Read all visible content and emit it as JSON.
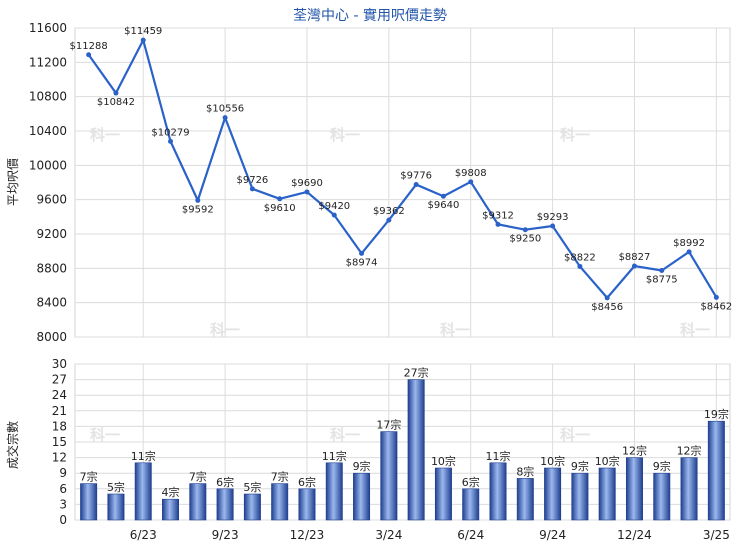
{
  "chart_data": [
    {
      "type": "line",
      "title": "荃灣中心 - 實用呎價走勢",
      "ylabel": "平均呎價",
      "ylim": [
        8000,
        11600
      ],
      "yticks": [
        8000,
        8400,
        8800,
        9200,
        9600,
        10000,
        10400,
        10800,
        11200,
        11600
      ],
      "grid": true,
      "line_color": "#2a62c9",
      "point_labels": [
        "$11288",
        "$10842",
        "$11459",
        "$10279",
        "$9592",
        "$10556",
        "$9726",
        "$9610",
        "$9690",
        "$9420",
        "$8974",
        "$9362",
        "$9776",
        "$9640",
        "$9808",
        "$9312",
        "$9250",
        "$9293",
        "$8822",
        "$8456",
        "$8827",
        "$8775",
        "$8992",
        "$8462"
      ],
      "values": [
        11288,
        10842,
        11459,
        10279,
        9592,
        10556,
        9726,
        9610,
        9690,
        9420,
        8974,
        9362,
        9776,
        9640,
        9808,
        9312,
        9250,
        9293,
        8822,
        8456,
        8827,
        8775,
        8992,
        8462
      ]
    },
    {
      "type": "bar",
      "ylabel": "成交宗數",
      "ylim": [
        0,
        30
      ],
      "yticks": [
        0,
        3,
        6,
        9,
        12,
        15,
        18,
        21,
        24,
        27,
        30
      ],
      "grid": true,
      "bar_color": "#3a66c8",
      "values": [
        7,
        5,
        11,
        4,
        7,
        6,
        5,
        7,
        6,
        11,
        9,
        17,
        27,
        10,
        6,
        11,
        8,
        10,
        9,
        10,
        12,
        9,
        12,
        19
      ],
      "bar_labels": [
        "7宗",
        "5宗",
        "11宗",
        "4宗",
        "7宗",
        "6宗",
        "5宗",
        "7宗",
        "6宗",
        "11宗",
        "9宗",
        "17宗",
        "27宗",
        "10宗",
        "6宗",
        "11宗",
        "8宗",
        "10宗",
        "9宗",
        "10宗",
        "12宗",
        "9宗",
        "12宗",
        "19宗"
      ],
      "x_tick_labels": [
        "6/23",
        "9/23",
        "12/23",
        "3/24",
        "6/24",
        "9/24",
        "12/24",
        "3/25"
      ],
      "x_tick_positions": [
        2,
        5,
        8,
        11,
        14,
        17,
        20,
        23
      ]
    }
  ],
  "watermark": "科一"
}
